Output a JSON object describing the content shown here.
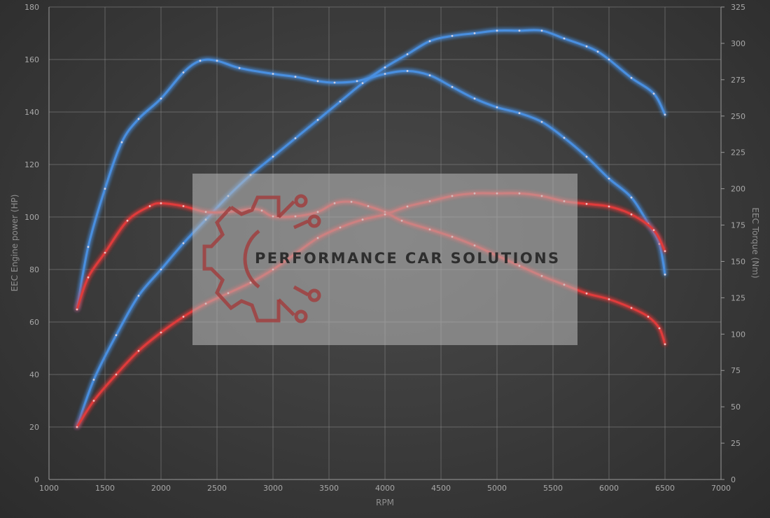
{
  "watermark": {
    "text": "PERFORMANCE CAR SOLUTIONS"
  },
  "colors": {
    "stock": "#e03a3a",
    "tuned": "#4a8fe0",
    "background": "#3a3a3a",
    "watermark_logo": "#a04040"
  },
  "chart_data": {
    "type": "line",
    "title": "",
    "xlabel": "RPM",
    "ylabel_left": "EEC Engine power (HP)",
    "ylabel_right": "EEC Torque (Nm)",
    "xlim": [
      1000,
      7000
    ],
    "ylim_left": [
      0,
      180
    ],
    "ylim_right": [
      0,
      325
    ],
    "x_ticks": [
      1000,
      1500,
      2000,
      2500,
      3000,
      3500,
      4000,
      4500,
      5000,
      5500,
      6000,
      6500,
      7000
    ],
    "y_ticks_left": [
      0,
      20,
      40,
      60,
      80,
      100,
      120,
      140,
      160,
      180
    ],
    "y_ticks_right": [
      0,
      25,
      50,
      75,
      100,
      125,
      150,
      175,
      200,
      225,
      250,
      275,
      300,
      325
    ],
    "grid": true,
    "series": [
      {
        "axis": "right",
        "color": "#4a8fe0",
        "x": [
          1250,
          1350,
          1500,
          1650,
          1800,
          2000,
          2200,
          2350,
          2500,
          2700,
          3000,
          3200,
          3400,
          3550,
          3750,
          4000,
          4200,
          4400,
          4600,
          4800,
          5000,
          5200,
          5400,
          5600,
          5800,
          6000,
          6200,
          6350,
          6450,
          6500
        ],
        "y": [
          117,
          160,
          200,
          232,
          248,
          262,
          280,
          288,
          288,
          283,
          279,
          277,
          274,
          273,
          274,
          279,
          281,
          278,
          270,
          262,
          256,
          252,
          246,
          235,
          222,
          207,
          194,
          176,
          162,
          141
        ]
      },
      {
        "axis": "left",
        "color": "#4a8fe0",
        "x": [
          1250,
          1400,
          1600,
          1800,
          2000,
          2200,
          2400,
          2600,
          2800,
          3000,
          3200,
          3400,
          3600,
          3800,
          4000,
          4200,
          4400,
          4600,
          4800,
          5000,
          5200,
          5400,
          5600,
          5800,
          5900,
          6000,
          6200,
          6400,
          6500
        ],
        "y": [
          20,
          38,
          55,
          70,
          80,
          90,
          99,
          108,
          116,
          123,
          130,
          137,
          144,
          151,
          157,
          162,
          167,
          169,
          170,
          171,
          171,
          171,
          168,
          165,
          163,
          160,
          153,
          147,
          139
        ]
      },
      {
        "axis": "right",
        "color": "#e03a3a",
        "x": [
          1250,
          1350,
          1500,
          1700,
          1900,
          2000,
          2200,
          2400,
          2600,
          2800,
          2900,
          3000,
          3200,
          3400,
          3550,
          3700,
          3850,
          4000,
          4150,
          4400,
          4600,
          4800,
          5000,
          5200,
          5400,
          5600,
          5800,
          6000,
          6200,
          6350,
          6450,
          6500
        ],
        "y": [
          117,
          139,
          156,
          178,
          188,
          190,
          188,
          184,
          184,
          186,
          185,
          181,
          181,
          184,
          190,
          191,
          188,
          184,
          178,
          172,
          167,
          161,
          154,
          147,
          140,
          134,
          128,
          124,
          118,
          112,
          104,
          93
        ]
      },
      {
        "axis": "left",
        "color": "#e03a3a",
        "x": [
          1250,
          1400,
          1600,
          1800,
          2000,
          2200,
          2400,
          2600,
          2800,
          3000,
          3200,
          3400,
          3600,
          3800,
          4000,
          4200,
          4400,
          4600,
          4800,
          5000,
          5200,
          5400,
          5600,
          5800,
          6000,
          6200,
          6400,
          6500
        ],
        "y": [
          20,
          30,
          40,
          49,
          56,
          62,
          67,
          71,
          75,
          80,
          86,
          92,
          96,
          99,
          101,
          104,
          106,
          108,
          109,
          109,
          109,
          108,
          106,
          105,
          104,
          101,
          95,
          87
        ]
      }
    ]
  }
}
